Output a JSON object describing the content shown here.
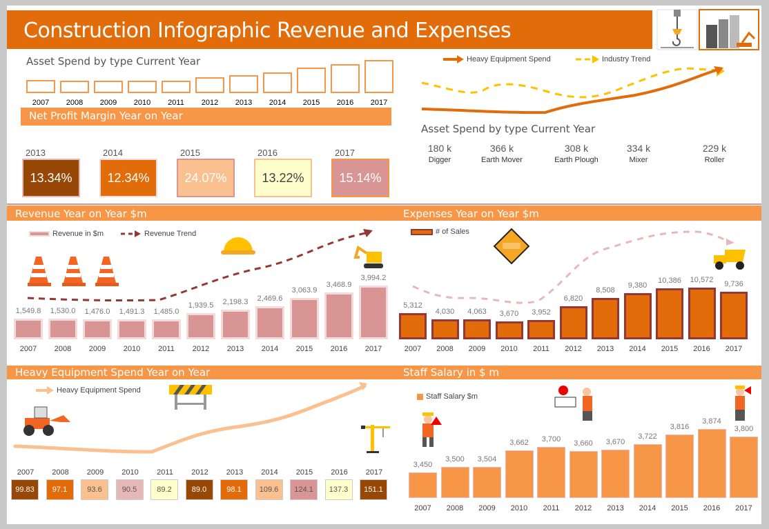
{
  "header": {
    "title": "Construction Infographic Revenue and Expenses"
  },
  "asset_spend_mini": {
    "title": "Asset Spend by type Current Year"
  },
  "net_profit": {
    "title": "Net Profit Margin Year on Year",
    "items": [
      {
        "year": "2013",
        "value": "13.34%",
        "bg": "#974706",
        "fg": "#ffffff",
        "border": "#e6b9b8"
      },
      {
        "year": "2014",
        "value": "12.34%",
        "bg": "#e36c0a",
        "fg": "#ffffff",
        "border": "#f2dcdb"
      },
      {
        "year": "2015",
        "value": "24.07%",
        "bg": "#fac090",
        "fg": "#ffffff",
        "border": "#d99594"
      },
      {
        "year": "2016",
        "value": "13.22%",
        "bg": "#ffffcc",
        "fg": "#404040",
        "border": "#fac090"
      },
      {
        "year": "2017",
        "value": "15.14%",
        "bg": "#d99594",
        "fg": "#ffffff",
        "border": "#f79646"
      }
    ]
  },
  "trend_legend": {
    "series1": "Heavy Equipment Spend",
    "series2": "Industry Trend"
  },
  "asset_types": {
    "title": "Asset Spend by type Current Year",
    "items": [
      {
        "name": "Digger",
        "value": "180 k",
        "icon": "digger-icon"
      },
      {
        "name": "Earth Mover",
        "value": "366 k",
        "icon": "dump-truck-icon"
      },
      {
        "name": "Earth Plough",
        "value": "308 k",
        "icon": "bulldozer-icon"
      },
      {
        "name": "Mixer",
        "value": "334 k",
        "icon": "mixer-truck-icon"
      },
      {
        "name": "Roller",
        "value": "229 k",
        "icon": "road-roller-icon"
      }
    ]
  },
  "sections": {
    "revenue": "Revenue Year on Year $m",
    "expenses": "Expenses Year on Year $m",
    "heavy": "Heavy Equipment Spend Year on Year",
    "salary": "Staff Salary in $ m"
  },
  "heavy_legend": "Heavy Equipment Spend",
  "heavy_boxes": [
    {
      "bg": "#974706",
      "fg": "#fff"
    },
    {
      "bg": "#e36c0a",
      "fg": "#fff"
    },
    {
      "bg": "#fac090",
      "fg": "#555"
    },
    {
      "bg": "#e6b9b8",
      "fg": "#555"
    },
    {
      "bg": "#ffffcc",
      "fg": "#555"
    },
    {
      "bg": "#974706",
      "fg": "#fff"
    },
    {
      "bg": "#e36c0a",
      "fg": "#fff"
    },
    {
      "bg": "#fac090",
      "fg": "#555"
    },
    {
      "bg": "#d99594",
      "fg": "#555"
    },
    {
      "bg": "#ffffcc",
      "fg": "#555"
    },
    {
      "bg": "#974706",
      "fg": "#fff"
    }
  ],
  "colors": {
    "orange": "#e36c0a",
    "light_orange": "#f79646",
    "revenue_bar": "#d99594",
    "expense_border": "#953735",
    "trend_dark": "#953735",
    "industry": "#ffc000"
  },
  "chart_data": [
    {
      "id": "asset_mini",
      "type": "bar",
      "categories": [
        "2007",
        "2008",
        "2009",
        "2010",
        "2011",
        "2012",
        "2013",
        "2014",
        "2015",
        "2016",
        "2017"
      ],
      "values": [
        1549.8,
        1530.0,
        1476.0,
        1491.3,
        1485.0,
        1939.5,
        2198.3,
        2469.6,
        3063.9,
        3468.9,
        3994.2
      ],
      "grid": false
    },
    {
      "id": "revenue",
      "type": "bar",
      "categories": [
        "2007",
        "2008",
        "2009",
        "2010",
        "2011",
        "2012",
        "2013",
        "2014",
        "2015",
        "2016",
        "2017"
      ],
      "series": [
        {
          "name": "Revenue in $m",
          "values": [
            1549.8,
            1530.0,
            1476.0,
            1491.3,
            1485.0,
            1939.5,
            2198.3,
            2469.6,
            3063.9,
            3468.9,
            3994.2
          ],
          "labels": [
            "1,549.8",
            "1,530.0",
            "1,476.0",
            "1,491.3",
            "1,485.0",
            "1,939.5",
            "2,198.3",
            "2,469.6",
            "3,063.9",
            "3,468.9",
            "3,994.2"
          ]
        },
        {
          "name": "Revenue Trend",
          "type": "line"
        }
      ],
      "ylim": [
        0,
        4200
      ],
      "grid": false,
      "legend": "top-left"
    },
    {
      "id": "expenses",
      "type": "bar",
      "categories": [
        "2007",
        "2008",
        "2009",
        "2010",
        "2011",
        "2012",
        "2013",
        "2014",
        "2015",
        "2016",
        "2017"
      ],
      "series": [
        {
          "name": "# of Sales",
          "values": [
            5312,
            4030,
            4063,
            3670,
            3952,
            6820,
            8508,
            9380,
            10386,
            10572,
            9736
          ],
          "labels": [
            "5,312",
            "4,030",
            "4,063",
            "3,670",
            "3,952",
            "6,820",
            "8,508",
            "9,380",
            "10,386",
            "10,572",
            "9,736"
          ]
        }
      ],
      "ylim": [
        0,
        11000
      ],
      "grid": false,
      "legend": "top-left"
    },
    {
      "id": "heavy",
      "type": "table",
      "categories": [
        "2007",
        "2008",
        "2009",
        "2010",
        "2011",
        "2012",
        "2013",
        "2014",
        "2015",
        "2016",
        "2017"
      ],
      "values": [
        "99.83",
        "97.1",
        "93.6",
        "90.5",
        "89.2",
        "89.0",
        "98.1",
        "109.6",
        "124.1",
        "137.3",
        "151.1"
      ]
    },
    {
      "id": "salary",
      "type": "bar",
      "categories": [
        "2007",
        "2008",
        "2009",
        "2010",
        "2011",
        "2012",
        "2013",
        "2014",
        "2015",
        "2016",
        "2017"
      ],
      "series": [
        {
          "name": "Staff Salary $m",
          "values": [
            3450,
            3500,
            3504,
            3662,
            3700,
            3660,
            3670,
            3722,
            3816,
            3874,
            3800
          ],
          "labels": [
            "3,450",
            "3,500",
            "3,504",
            "3,662",
            "3,700",
            "3,660",
            "3,670",
            "3,722",
            "3,816",
            "3,874",
            "3,800"
          ]
        }
      ],
      "ylim": [
        3200,
        3900
      ],
      "grid": false,
      "legend": "top-left"
    }
  ]
}
